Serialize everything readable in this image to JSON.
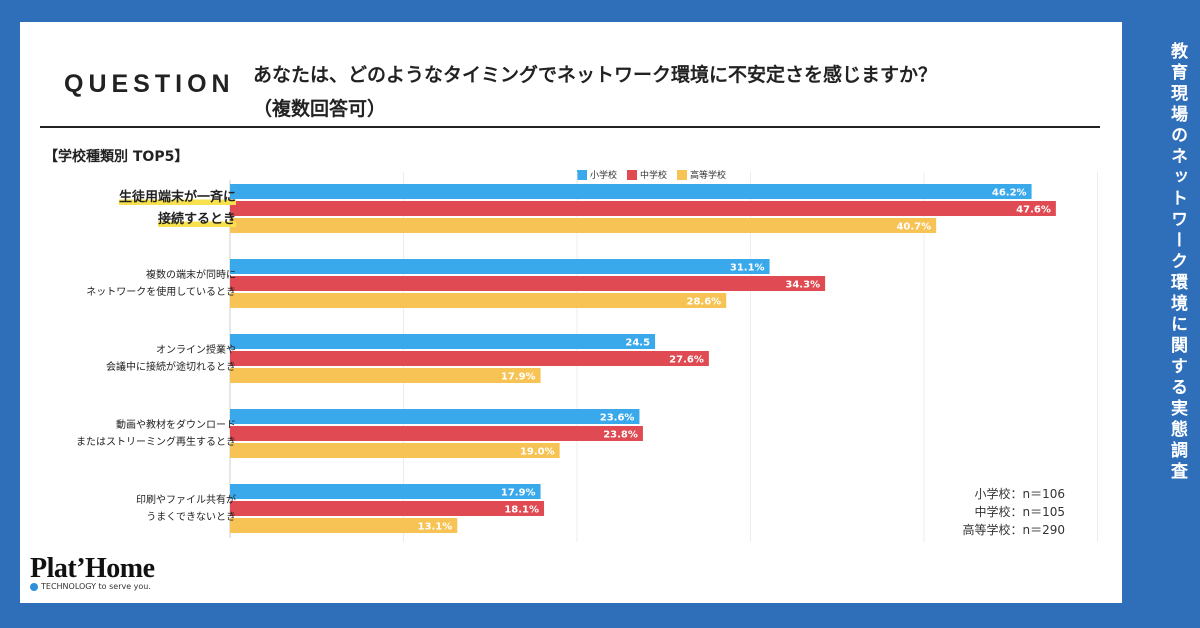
{
  "header": {
    "question_label": "QUESTION",
    "question_text_line1": "あなたは、どのようなタイミングでネットワーク環境に不安定さを感じますか？",
    "question_text_line2": "（複数回答可）",
    "section_label": "【学校種類別 TOP5】"
  },
  "side_title": "教育現場のネットワーク環境に関する実態調査",
  "legend": [
    {
      "name": "小学校",
      "color": "#3aa9ec"
    },
    {
      "name": "中学校",
      "color": "#e04a52"
    },
    {
      "name": "高等学校",
      "color": "#f7c354"
    }
  ],
  "categories": [
    {
      "lines": [
        "生徒用端末が一斉に",
        "接続するとき"
      ],
      "highlight": true
    },
    {
      "lines": [
        "複数の端末が同時に",
        "ネットワークを使用しているとき"
      ],
      "highlight": false
    },
    {
      "lines": [
        "オンライン授業や",
        "会議中に接続が途切れるとき"
      ],
      "highlight": false
    },
    {
      "lines": [
        "動画や教材をダウンロード",
        "またはストリーミング再生するとき"
      ],
      "highlight": false
    },
    {
      "lines": [
        "印刷やファイル共有が",
        "うまくできないとき"
      ],
      "highlight": false
    }
  ],
  "chart_data": {
    "type": "bar",
    "orientation": "horizontal",
    "title": "【学校種類別 TOP5】",
    "categories": [
      "生徒用端末が一斉に接続するとき",
      "複数の端末が同時にネットワークを使用しているとき",
      "オンライン授業や会議中に接続が途切れるとき",
      "動画や教材をダウンロードまたはストリーミング再生するとき",
      "印刷やファイル共有がうまくできないとき"
    ],
    "series": [
      {
        "name": "小学校",
        "color": "#3aa9ec",
        "values": [
          46.2,
          31.1,
          24.5,
          23.6,
          17.9
        ],
        "labels": [
          "46.2%",
          "31.1%",
          "24.5",
          "23.6%",
          "17.9%"
        ]
      },
      {
        "name": "中学校",
        "color": "#e04a52",
        "values": [
          47.6,
          34.3,
          27.6,
          23.8,
          18.1
        ],
        "labels": [
          "47.6%",
          "34.3%",
          "27.6%",
          "23.8%",
          "18.1%"
        ]
      },
      {
        "name": "高等学校",
        "color": "#f7c354",
        "values": [
          40.7,
          28.6,
          17.9,
          19.0,
          13.1
        ],
        "labels": [
          "40.7%",
          "28.6%",
          "17.9%",
          "19.0%",
          "13.1%"
        ]
      }
    ],
    "xlim": [
      0,
      50
    ],
    "xlabel": "",
    "ylabel": "",
    "legend": "top-center"
  },
  "notes": [
    "小学校：n＝106",
    "中学校：n＝105",
    "高等学校：n＝290"
  ],
  "logo": {
    "name": "Plat’Home",
    "tagline": "TECHNOLOGY to serve you."
  }
}
